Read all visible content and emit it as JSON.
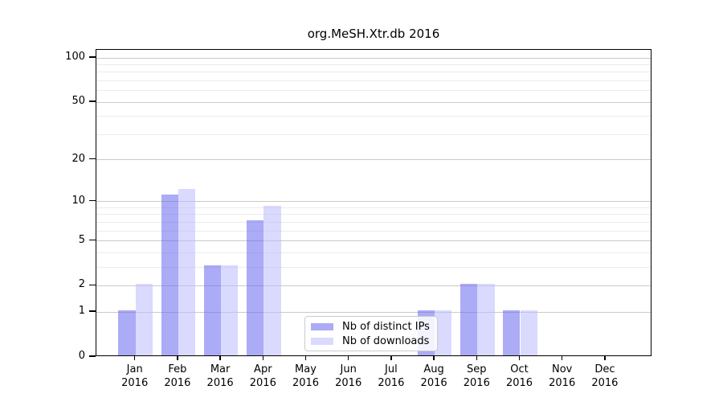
{
  "title": "org.MeSH.Xtr.db 2016",
  "chart_data": {
    "type": "bar",
    "title": "org.MeSH.Xtr.db 2016",
    "xlabel": "",
    "ylabel": "",
    "categories": [
      "Jan",
      "Feb",
      "Mar",
      "Apr",
      "May",
      "Jun",
      "Jul",
      "Aug",
      "Sep",
      "Oct",
      "Nov",
      "Dec"
    ],
    "x_tick_year": "2016",
    "series": [
      {
        "name": "Nb of distinct IPs",
        "color": "#6666ee",
        "fill_alpha": 0.55,
        "values": [
          1,
          11,
          3,
          7,
          0,
          0,
          0,
          1,
          2,
          1,
          0,
          0
        ]
      },
      {
        "name": "Nb of downloads",
        "color": "#bbbbff",
        "fill_alpha": 0.55,
        "values": [
          2,
          12,
          3,
          9,
          0,
          0,
          0,
          1,
          2,
          1,
          0,
          0
        ]
      }
    ],
    "y_axis": {
      "scale": "log1p",
      "ticks": [
        0,
        1,
        2,
        5,
        10,
        20,
        50,
        100
      ],
      "minor_ticks": [
        3,
        4,
        6,
        7,
        8,
        9,
        30,
        40,
        60,
        70,
        80,
        90
      ],
      "ylim": [
        0,
        113
      ]
    },
    "grid": {
      "major_color": "#cacaca",
      "minor_color": "#ebebeb"
    },
    "legend": {
      "position": "lower-center",
      "entries": [
        "Nb of distinct IPs",
        "Nb of downloads"
      ]
    },
    "frame_color": "#000000",
    "background_color": "#ffffff"
  }
}
